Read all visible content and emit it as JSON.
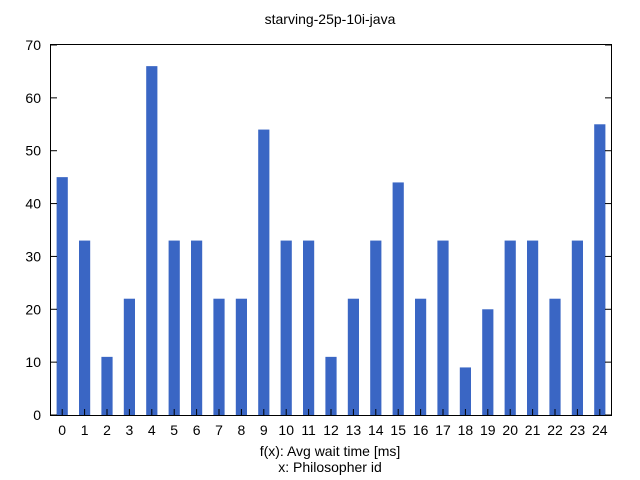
{
  "chart_data": {
    "type": "bar",
    "title": "starving-25p-10i-java",
    "xlabel": "x: Philosopher id",
    "ylabel": "f(x): Avg wait time [ms]",
    "categories": [
      "0",
      "1",
      "2",
      "3",
      "4",
      "5",
      "6",
      "7",
      "8",
      "9",
      "10",
      "11",
      "12",
      "13",
      "14",
      "15",
      "16",
      "17",
      "18",
      "19",
      "20",
      "21",
      "22",
      "23",
      "24"
    ],
    "values": [
      45,
      33,
      11,
      22,
      66,
      33,
      33,
      22,
      22,
      54,
      33,
      33,
      11,
      22,
      33,
      44,
      22,
      33,
      9,
      20,
      33,
      33,
      22,
      33,
      55
    ],
    "ylim": [
      0,
      70
    ],
    "yticks": [
      0,
      10,
      20,
      30,
      40,
      50,
      60,
      70
    ],
    "grid": false,
    "bar_color": "#3a66c4"
  }
}
